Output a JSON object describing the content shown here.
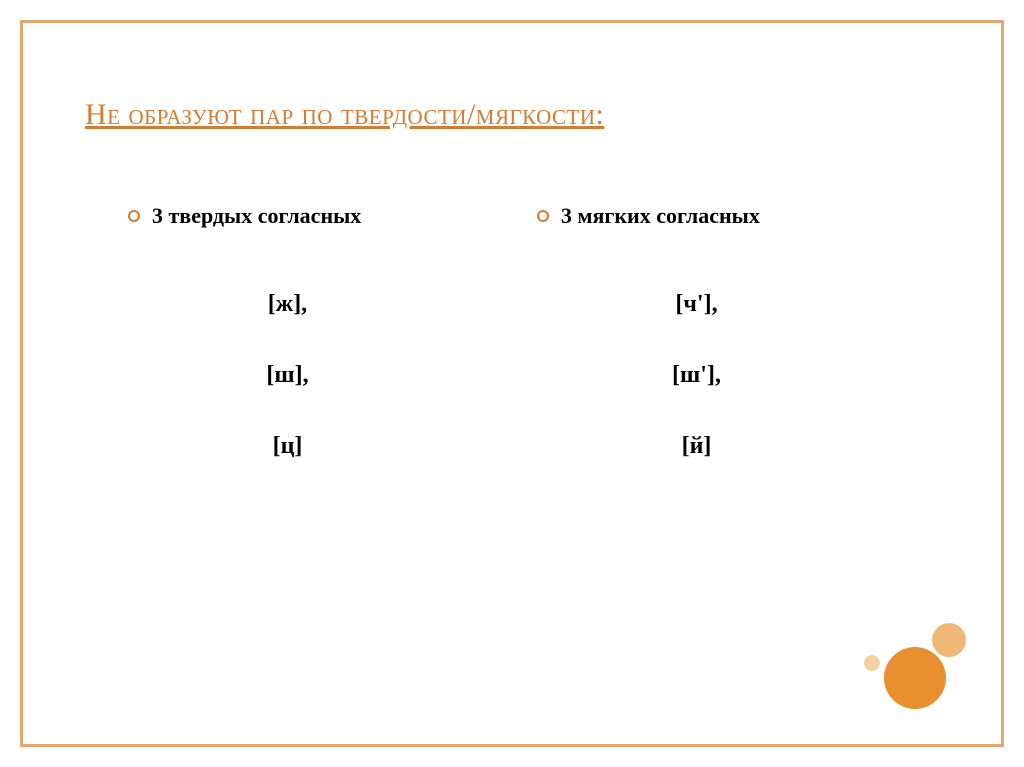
{
  "title": "Не образуют пар по твердости/мягкости:",
  "columns": {
    "left": {
      "heading": "3 твердых согласных",
      "items": [
        "[ж],",
        "[ш],",
        "[ц]"
      ]
    },
    "right": {
      "heading": "3 мягких согласных",
      "items": [
        "[ч'],",
        "[ш'],",
        "[й]"
      ]
    }
  },
  "colors": {
    "accent": "#d87a2f",
    "frame": "#e8a46a",
    "circle_big": "#e8902f",
    "circle_mid": "#f0b878",
    "circle_small": "#f5d0a5"
  }
}
